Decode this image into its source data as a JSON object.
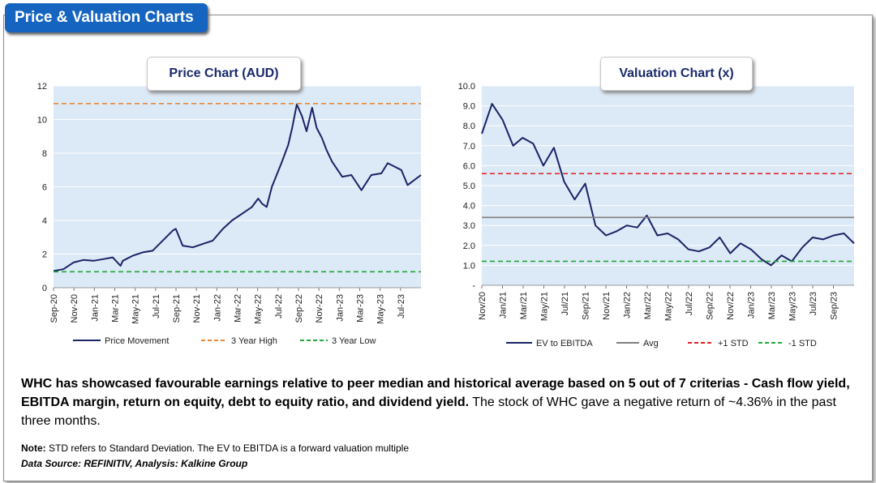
{
  "header": {
    "title": "Price & Valuation Charts"
  },
  "colors": {
    "accent": "#1565c0",
    "title_text": "#1a2a6c",
    "plot_bg": "#dce9f6",
    "grid": "#ffffff"
  },
  "chart_data": [
    {
      "type": "line",
      "title": "Price Chart (AUD)",
      "xlabel": "",
      "ylabel": "",
      "ylim": [
        0,
        12
      ],
      "y_ticks": [
        0,
        2,
        4,
        6,
        8,
        10,
        12
      ],
      "x_ticks": [
        "Sep-20",
        "Nov-20",
        "Jan-21",
        "Mar-21",
        "May-21",
        "Jul-21",
        "Sep-21",
        "Nov-21",
        "Jan-22",
        "Mar-22",
        "May-22",
        "Jul-22",
        "Sep-22",
        "Nov-22",
        "Jan-23",
        "Mar-23",
        "May-23",
        "Jul-23"
      ],
      "x_start": "2020-09-01",
      "x_end": "2023-09-30",
      "grid": true,
      "legend": "bottom",
      "series": [
        {
          "name": "Price Movement",
          "color": "#1a2366",
          "style": "solid",
          "points": [
            [
              "2020-09-01",
              1.0
            ],
            [
              "2020-10-01",
              1.1
            ],
            [
              "2020-11-01",
              1.5
            ],
            [
              "2020-12-01",
              1.65
            ],
            [
              "2021-01-01",
              1.6
            ],
            [
              "2021-02-01",
              1.7
            ],
            [
              "2021-03-01",
              1.8
            ],
            [
              "2021-03-25",
              1.3
            ],
            [
              "2021-04-01",
              1.6
            ],
            [
              "2021-05-01",
              1.9
            ],
            [
              "2021-06-01",
              2.1
            ],
            [
              "2021-07-01",
              2.2
            ],
            [
              "2021-08-01",
              2.8
            ],
            [
              "2021-09-01",
              3.4
            ],
            [
              "2021-09-10",
              3.5
            ],
            [
              "2021-10-01",
              2.5
            ],
            [
              "2021-11-01",
              2.4
            ],
            [
              "2021-12-01",
              2.6
            ],
            [
              "2022-01-01",
              2.8
            ],
            [
              "2022-02-01",
              3.5
            ],
            [
              "2022-03-01",
              4.0
            ],
            [
              "2022-04-01",
              4.4
            ],
            [
              "2022-05-01",
              4.8
            ],
            [
              "2022-05-20",
              5.3
            ],
            [
              "2022-06-01",
              5.0
            ],
            [
              "2022-06-15",
              4.8
            ],
            [
              "2022-07-01",
              6.0
            ],
            [
              "2022-08-01",
              7.5
            ],
            [
              "2022-08-20",
              8.5
            ],
            [
              "2022-09-01",
              9.5
            ],
            [
              "2022-09-15",
              10.9
            ],
            [
              "2022-10-01",
              10.2
            ],
            [
              "2022-10-15",
              9.3
            ],
            [
              "2022-11-01",
              10.7
            ],
            [
              "2022-11-15",
              9.5
            ],
            [
              "2022-12-01",
              8.9
            ],
            [
              "2022-12-15",
              8.2
            ],
            [
              "2023-01-01",
              7.5
            ],
            [
              "2023-02-01",
              6.6
            ],
            [
              "2023-03-01",
              6.7
            ],
            [
              "2023-04-01",
              5.8
            ],
            [
              "2023-05-01",
              6.7
            ],
            [
              "2023-06-01",
              6.8
            ],
            [
              "2023-06-20",
              7.4
            ],
            [
              "2023-07-01",
              7.3
            ],
            [
              "2023-08-01",
              7.0
            ],
            [
              "2023-08-20",
              6.1
            ],
            [
              "2023-09-30",
              6.7
            ]
          ]
        },
        {
          "name": "3 Year High",
          "color": "#e8873a",
          "style": "dashed",
          "value": 10.95
        },
        {
          "name": "3 Year Low",
          "color": "#22a83a",
          "style": "dashed",
          "value": 0.95
        }
      ]
    },
    {
      "type": "line",
      "title": "Valuation Chart (x)",
      "xlabel": "",
      "ylabel": "",
      "ylim": [
        0,
        10
      ],
      "y_ticks": [
        "-",
        "1.0",
        "2.0",
        "3.0",
        "4.0",
        "5.0",
        "6.0",
        "7.0",
        "8.0",
        "9.0",
        "10.0"
      ],
      "x_ticks": [
        "Nov/20",
        "Jan/21",
        "Mar/21",
        "May/21",
        "Jul/21",
        "Sep/21",
        "Nov/21",
        "Jan/22",
        "Mar/22",
        "May/22",
        "Jul/22",
        "Sep/22",
        "Nov/22",
        "Jan/23",
        "Mar/23",
        "May/23",
        "Jul/23",
        "Sep/23"
      ],
      "x_start": "2020-11-01",
      "x_end": "2023-10-31",
      "grid": true,
      "legend": "bottom",
      "series": [
        {
          "name": "EV to EBITDA",
          "color": "#1a2366",
          "style": "solid",
          "points": [
            [
              "2020-11-01",
              7.6
            ],
            [
              "2020-12-01",
              9.1
            ],
            [
              "2021-01-01",
              8.3
            ],
            [
              "2021-02-01",
              7.0
            ],
            [
              "2021-03-01",
              7.4
            ],
            [
              "2021-04-01",
              7.1
            ],
            [
              "2021-05-01",
              6.0
            ],
            [
              "2021-06-01",
              6.9
            ],
            [
              "2021-07-01",
              5.2
            ],
            [
              "2021-08-01",
              4.3
            ],
            [
              "2021-09-01",
              5.1
            ],
            [
              "2021-10-01",
              3.0
            ],
            [
              "2021-11-01",
              2.5
            ],
            [
              "2021-12-01",
              2.7
            ],
            [
              "2022-01-01",
              3.0
            ],
            [
              "2022-02-01",
              2.9
            ],
            [
              "2022-03-01",
              3.5
            ],
            [
              "2022-04-01",
              2.5
            ],
            [
              "2022-05-01",
              2.6
            ],
            [
              "2022-06-01",
              2.3
            ],
            [
              "2022-07-01",
              1.8
            ],
            [
              "2022-08-01",
              1.7
            ],
            [
              "2022-09-01",
              1.9
            ],
            [
              "2022-10-01",
              2.4
            ],
            [
              "2022-11-01",
              1.6
            ],
            [
              "2022-12-01",
              2.1
            ],
            [
              "2023-01-01",
              1.8
            ],
            [
              "2023-02-01",
              1.3
            ],
            [
              "2023-03-01",
              1.0
            ],
            [
              "2023-04-01",
              1.5
            ],
            [
              "2023-05-01",
              1.2
            ],
            [
              "2023-06-01",
              1.9
            ],
            [
              "2023-07-01",
              2.4
            ],
            [
              "2023-08-01",
              2.3
            ],
            [
              "2023-09-01",
              2.5
            ],
            [
              "2023-10-01",
              2.6
            ],
            [
              "2023-10-31",
              2.1
            ]
          ]
        },
        {
          "name": "Avg",
          "color": "#808080",
          "style": "solid",
          "value": 3.4
        },
        {
          "name": "+1 STD",
          "color": "#e02020",
          "style": "dashed",
          "value": 5.6
        },
        {
          "name": "-1 STD",
          "color": "#22a83a",
          "style": "dashed",
          "value": 1.2
        }
      ]
    }
  ],
  "description": {
    "bold": "WHC has showcased favourable earnings relative to peer median and historical average based on 5 out of 7 criterias - Cash flow yield, EBITDA margin, return on equity, debt to equity ratio, and dividend yield.",
    "normal": " The stock of WHC gave a negative return of ~4.36% in the past three months."
  },
  "note": {
    "label": "Note:",
    "text": " STD refers to Standard Deviation. The EV to EBITDA is a forward valuation multiple"
  },
  "source": {
    "text": "Data Source: REFINITIV, Analysis: Kalkine Group"
  }
}
